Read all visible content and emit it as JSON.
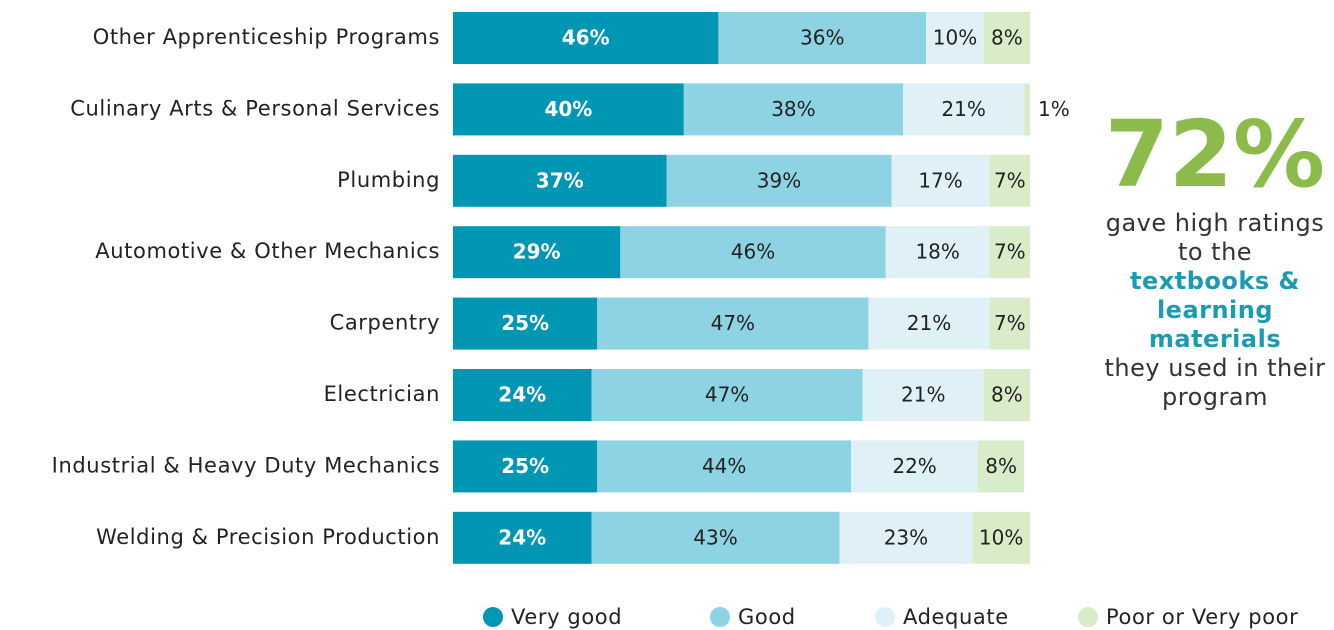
{
  "chart_data": {
    "type": "stacked-bar-horizontal",
    "categories": [
      "Other Apprenticeship Programs",
      "Culinary Arts & Personal Services",
      "Plumbing",
      "Automotive & Other Mechanics",
      "Carpentry",
      "Electrician",
      "Industrial & Heavy Duty Mechanics",
      "Welding & Precision Production"
    ],
    "series": [
      {
        "name": "Very good",
        "color": "#0096b4",
        "values": [
          46,
          40,
          37,
          29,
          25,
          24,
          25,
          24
        ],
        "value_labels": [
          "46%",
          "40%",
          "37%",
          "29%",
          "25%",
          "24%",
          "25%",
          "24%"
        ]
      },
      {
        "name": "Good",
        "color": "#8ed3e3",
        "values": [
          36,
          38,
          39,
          46,
          47,
          47,
          44,
          43
        ],
        "value_labels": [
          "36%",
          "38%",
          "39%",
          "46%",
          "47%",
          "47%",
          "44%",
          "43%"
        ]
      },
      {
        "name": "Adequate",
        "color": "#dff1f6",
        "values": [
          10,
          21,
          17,
          18,
          21,
          21,
          22,
          23
        ],
        "value_labels": [
          "10%",
          "21%",
          "17%",
          "18%",
          "21%",
          "21%",
          "22%",
          "23%"
        ]
      },
      {
        "name": "Poor or Very poor",
        "color": "#d9ecc9",
        "values": [
          8,
          1,
          7,
          7,
          7,
          8,
          8,
          10
        ],
        "value_labels": [
          "8%",
          "1%",
          "7%",
          "7%",
          "7%",
          "8%",
          "8%",
          "10%"
        ]
      }
    ],
    "xlim": [
      0,
      100
    ],
    "annotation": {
      "headline": "72%",
      "text_before": "gave high ratings to the",
      "highlight": "textbooks & learning materials",
      "text_after": "they used in their program"
    }
  }
}
